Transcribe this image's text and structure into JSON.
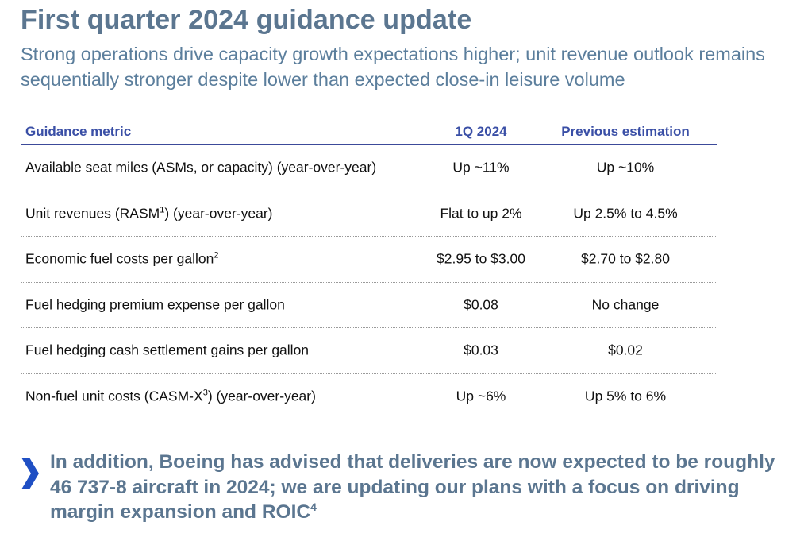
{
  "header": {
    "title": "First quarter 2024 guidance update",
    "subtitle": "Strong operations drive capacity growth expectations higher; unit revenue outlook remains sequentially stronger despite lower than expected close-in leisure volume"
  },
  "table": {
    "columns": [
      "Guidance metric",
      "1Q 2024",
      "Previous estimation"
    ],
    "rows": [
      {
        "metric": "Available seat miles (ASMs, or capacity) (year-over-year)",
        "metric_pre": "Available seat miles (ASMs, or capacity) (year-over-year)",
        "sup": "",
        "metric_post": "",
        "q1": "Up ~11%",
        "prev": "Up ~10%"
      },
      {
        "metric": "Unit revenues (RASM1) (year-over-year)",
        "metric_pre": "Unit revenues (RASM",
        "sup": "1",
        "metric_post": ") (year-over-year)",
        "q1": "Flat to up 2%",
        "prev": "Up 2.5% to 4.5%"
      },
      {
        "metric": "Economic fuel costs per gallon2",
        "metric_pre": "Economic fuel costs per gallon",
        "sup": "2",
        "metric_post": "",
        "q1": "$2.95 to $3.00",
        "prev": "$2.70 to $2.80"
      },
      {
        "metric": "Fuel hedging premium expense per gallon",
        "metric_pre": "Fuel hedging premium expense per gallon",
        "sup": "",
        "metric_post": "",
        "q1": "$0.08",
        "prev": "No change"
      },
      {
        "metric": "Fuel hedging cash settlement gains per gallon",
        "metric_pre": "Fuel hedging cash settlement gains per gallon",
        "sup": "",
        "metric_post": "",
        "q1": "$0.03",
        "prev": "$0.02"
      },
      {
        "metric": "Non-fuel unit costs (CASM-X3) (year-over-year)",
        "metric_pre": "Non-fuel unit costs (CASM-X",
        "sup": "3",
        "metric_post": ") (year-over-year)",
        "q1": "Up ~6%",
        "prev": "Up 5% to 6%"
      }
    ]
  },
  "callout": {
    "icon": "chevron-right-icon",
    "text": "In addition, Boeing has advised that deliveries are now expected to be roughly 46 737-8 aircraft in 2024; we are updating our plans with a focus on driving margin expansion and ROIC",
    "sup": "4"
  },
  "colors": {
    "title": "#5b7690",
    "header_text": "#3a4fa6",
    "header_rule": "#3c4a9a",
    "chevron": "#1f4fc4"
  }
}
